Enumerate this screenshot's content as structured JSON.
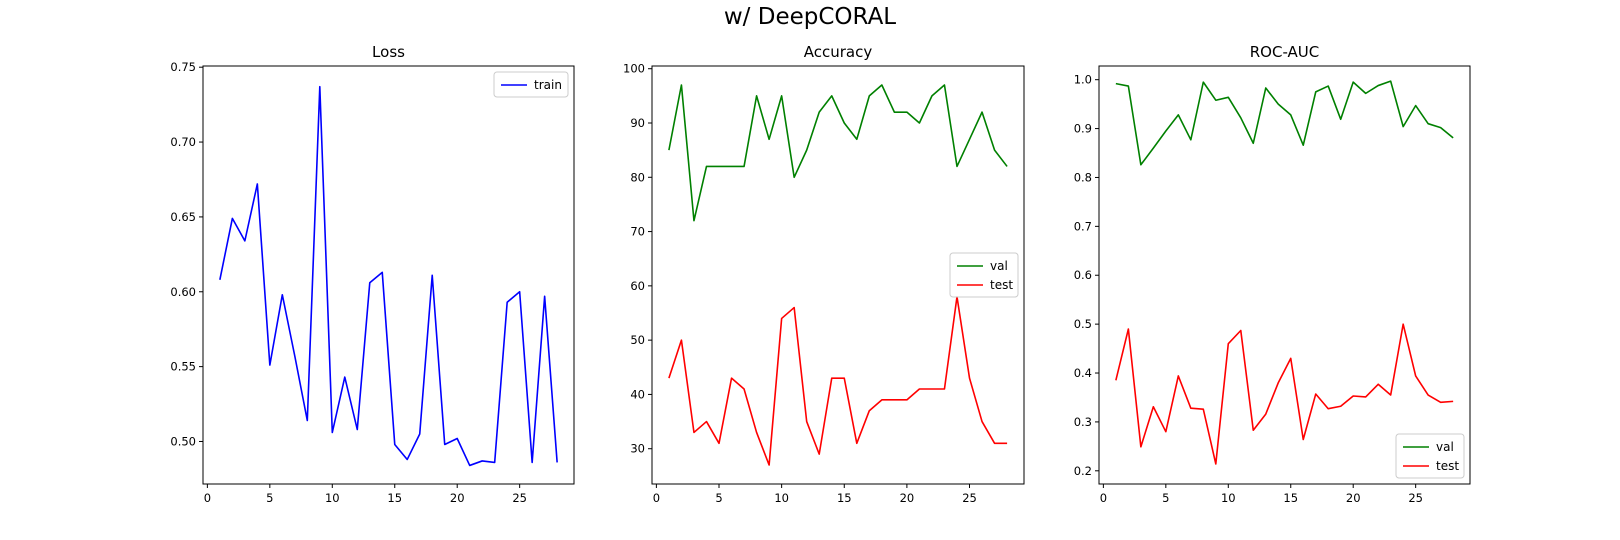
{
  "figure": {
    "title": "w/ DeepCORAL"
  },
  "chart_data": [
    {
      "type": "line",
      "title": "Loss",
      "xlim": [
        -0.35,
        29.35
      ],
      "ylim": [
        0.4716,
        0.7508
      ],
      "xticks": [
        0,
        5,
        10,
        15,
        20,
        25
      ],
      "yticks": [
        0.5,
        0.55,
        0.6,
        0.65,
        0.7,
        0.75
      ],
      "ytick_labels": [
        "0.50",
        "0.55",
        "0.60",
        "0.65",
        "0.70",
        "0.75"
      ],
      "legend": "top-right",
      "x": [
        1,
        2,
        3,
        4,
        5,
        6,
        7,
        8,
        9,
        10,
        11,
        12,
        13,
        14,
        15,
        16,
        17,
        18,
        19,
        20,
        21,
        22,
        23,
        24,
        25,
        26,
        27,
        28
      ],
      "series": [
        {
          "name": "train",
          "color": "#0000ff",
          "values": [
            0.608,
            0.649,
            0.634,
            0.672,
            0.551,
            0.598,
            0.557,
            0.514,
            0.737,
            0.506,
            0.543,
            0.508,
            0.606,
            0.613,
            0.498,
            0.488,
            0.505,
            0.611,
            0.498,
            0.502,
            0.484,
            0.487,
            0.486,
            0.593,
            0.6,
            0.486,
            0.597,
            0.486
          ]
        }
      ]
    },
    {
      "type": "line",
      "title": "Accuracy",
      "xlim": [
        -0.35,
        29.35
      ],
      "ylim": [
        23.5,
        100.5
      ],
      "xticks": [
        0,
        5,
        10,
        15,
        20,
        25
      ],
      "yticks": [
        30,
        40,
        50,
        60,
        70,
        80,
        90,
        100
      ],
      "ytick_labels": [
        "30",
        "40",
        "50",
        "60",
        "70",
        "80",
        "90",
        "100"
      ],
      "legend": "center-right",
      "x": [
        1,
        2,
        3,
        4,
        5,
        6,
        7,
        8,
        9,
        10,
        11,
        12,
        13,
        14,
        15,
        16,
        17,
        18,
        19,
        20,
        21,
        22,
        23,
        24,
        25,
        26,
        27,
        28
      ],
      "series": [
        {
          "name": "val",
          "color": "#008000",
          "values": [
            85,
            97,
            72,
            82,
            82,
            82,
            82,
            95,
            87,
            95,
            80,
            85,
            92,
            95,
            90,
            87,
            95,
            97,
            92,
            92,
            90,
            95,
            97,
            82,
            87,
            92,
            85,
            82
          ]
        },
        {
          "name": "test",
          "color": "#ff0000",
          "values": [
            43,
            50,
            33,
            35,
            31,
            43,
            41,
            33,
            27,
            54,
            56,
            35,
            29,
            43,
            43,
            31,
            37,
            39,
            39,
            39,
            41,
            41,
            41,
            58,
            43,
            35,
            31,
            31
          ]
        }
      ]
    },
    {
      "type": "line",
      "title": "ROC-AUC",
      "xlim": [
        -0.35,
        29.35
      ],
      "ylim": [
        0.173,
        1.028
      ],
      "xticks": [
        0,
        5,
        10,
        15,
        20,
        25
      ],
      "yticks": [
        0.2,
        0.3,
        0.4,
        0.5,
        0.6,
        0.7,
        0.8,
        0.9,
        1.0
      ],
      "ytick_labels": [
        "0.2",
        "0.3",
        "0.4",
        "0.5",
        "0.6",
        "0.7",
        "0.8",
        "0.9",
        "1.0"
      ],
      "legend": "bottom-right",
      "x": [
        1,
        2,
        3,
        4,
        5,
        6,
        7,
        8,
        9,
        10,
        11,
        12,
        13,
        14,
        15,
        16,
        17,
        18,
        19,
        20,
        21,
        22,
        23,
        24,
        25,
        26,
        27,
        28
      ],
      "series": [
        {
          "name": "val",
          "color": "#008000",
          "values": [
            0.992,
            0.987,
            0.826,
            0.86,
            0.895,
            0.928,
            0.877,
            0.995,
            0.958,
            0.964,
            0.922,
            0.87,
            0.983,
            0.95,
            0.928,
            0.866,
            0.975,
            0.987,
            0.919,
            0.995,
            0.972,
            0.988,
            0.997,
            0.904,
            0.947,
            0.91,
            0.902,
            0.881
          ]
        },
        {
          "name": "test",
          "color": "#ff0000",
          "values": [
            0.385,
            0.49,
            0.249,
            0.331,
            0.28,
            0.394,
            0.328,
            0.326,
            0.214,
            0.46,
            0.487,
            0.283,
            0.316,
            0.38,
            0.43,
            0.264,
            0.357,
            0.327,
            0.332,
            0.353,
            0.351,
            0.377,
            0.355,
            0.5,
            0.394,
            0.355,
            0.34,
            0.342
          ]
        }
      ]
    }
  ]
}
